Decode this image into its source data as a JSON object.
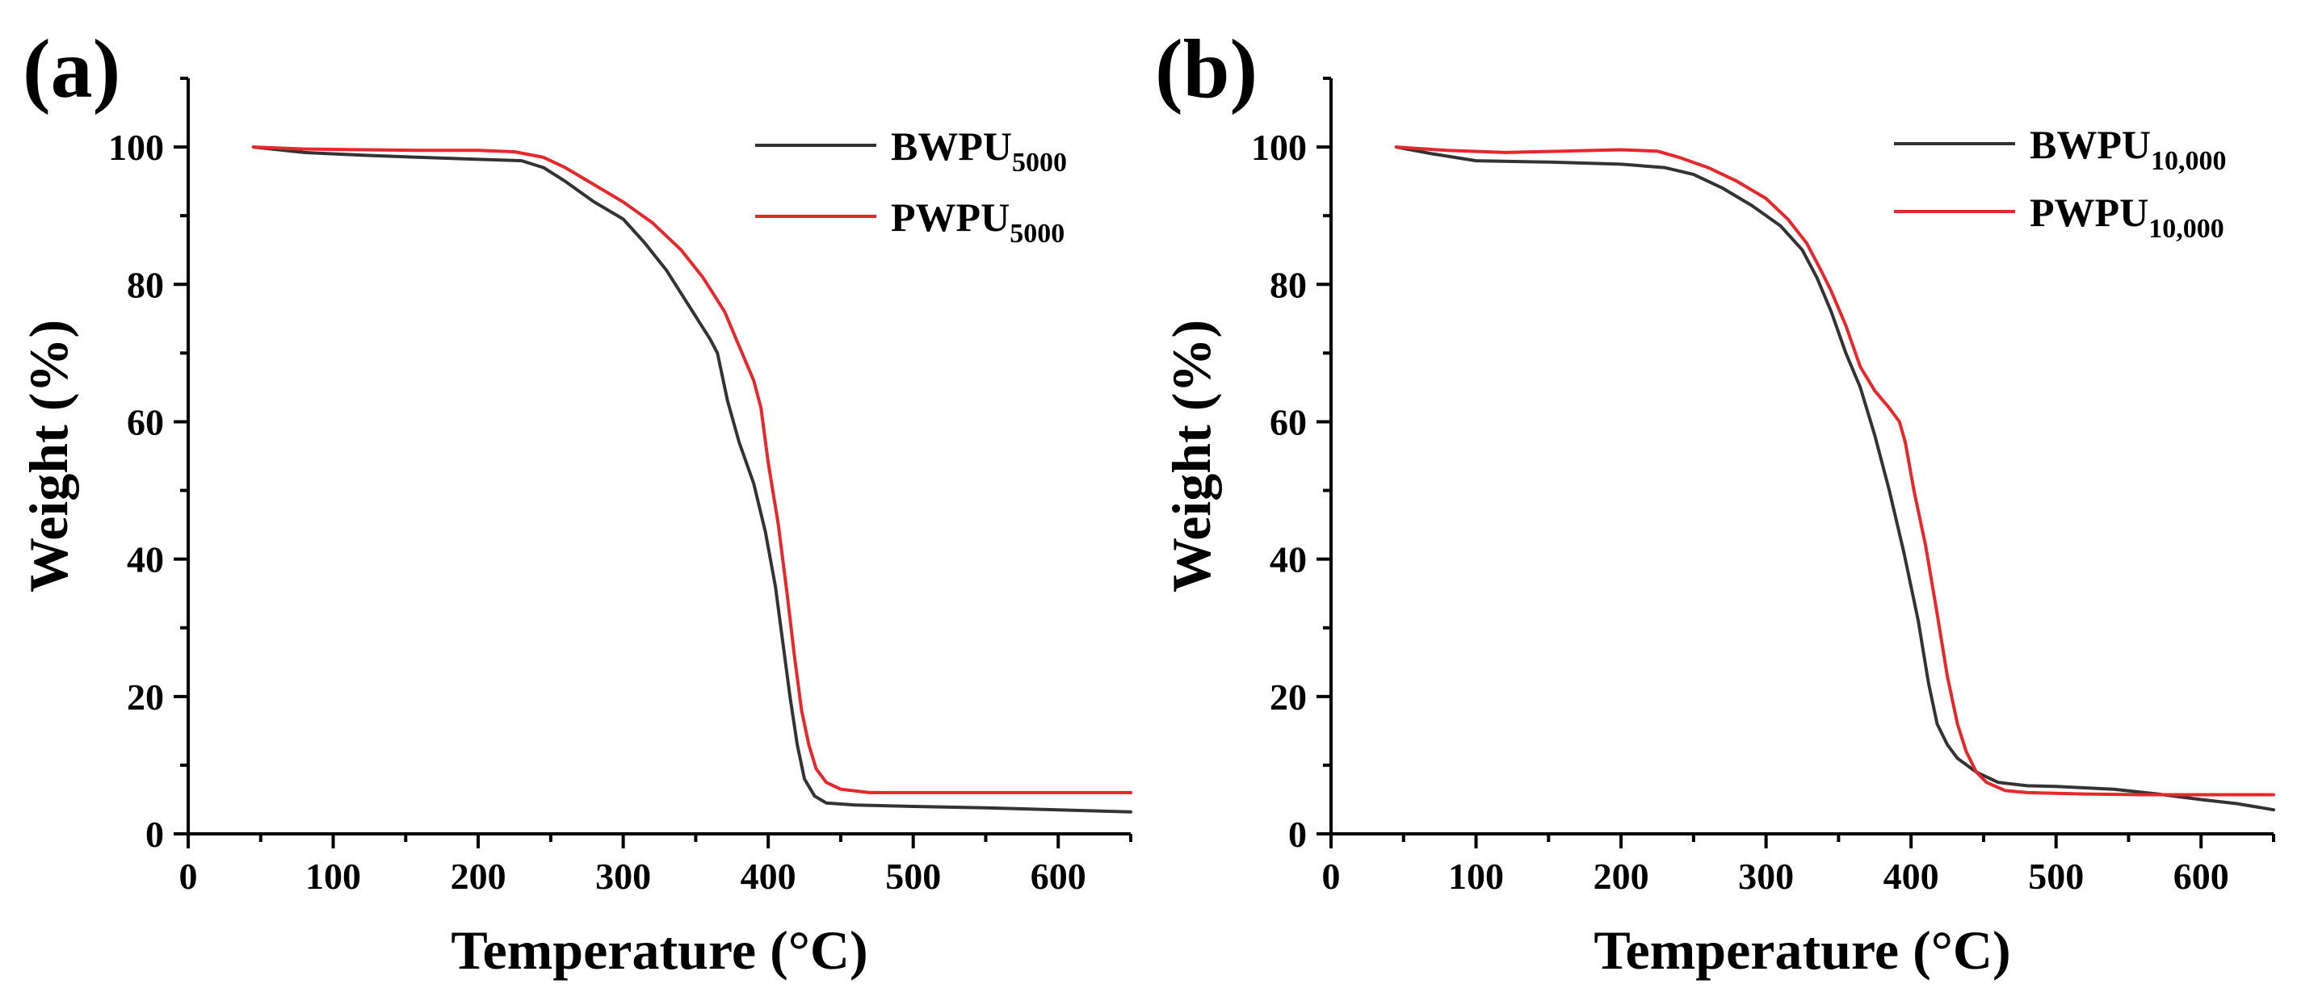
{
  "chart_data": [
    {
      "type": "line",
      "panel_label": "(a)",
      "xlabel": "Temperature (°C)",
      "ylabel": "Weight (%)",
      "xlim": [
        0,
        650
      ],
      "ylim": [
        0,
        110
      ],
      "xticks": [
        0,
        100,
        200,
        300,
        400,
        500,
        600
      ],
      "yticks": [
        0,
        20,
        40,
        60,
        80,
        100
      ],
      "grid": false,
      "legend_position": "top-right",
      "series": [
        {
          "name": "BWPU",
          "name_sub": "5000",
          "color": "#333333",
          "points": [
            [
              45,
              100
            ],
            [
              80,
              99.2
            ],
            [
              120,
              98.8
            ],
            [
              160,
              98.5
            ],
            [
              200,
              98.2
            ],
            [
              230,
              98
            ],
            [
              245,
              97
            ],
            [
              260,
              95
            ],
            [
              280,
              92
            ],
            [
              300,
              89.5
            ],
            [
              315,
              86
            ],
            [
              330,
              82
            ],
            [
              345,
              77
            ],
            [
              360,
              72
            ],
            [
              365,
              70
            ],
            [
              372,
              63
            ],
            [
              380,
              57
            ],
            [
              390,
              51
            ],
            [
              398,
              44
            ],
            [
              405,
              36
            ],
            [
              410,
              28
            ],
            [
              415,
              20
            ],
            [
              420,
              13
            ],
            [
              425,
              8
            ],
            [
              432,
              5.5
            ],
            [
              440,
              4.5
            ],
            [
              460,
              4.2
            ],
            [
              500,
              4
            ],
            [
              550,
              3.8
            ],
            [
              600,
              3.5
            ],
            [
              650,
              3.2
            ]
          ]
        },
        {
          "name": "PWPU",
          "name_sub": "5000",
          "color": "#e8272a",
          "points": [
            [
              45,
              100
            ],
            [
              80,
              99.7
            ],
            [
              120,
              99.6
            ],
            [
              160,
              99.5
            ],
            [
              200,
              99.5
            ],
            [
              225,
              99.3
            ],
            [
              245,
              98.5
            ],
            [
              260,
              97
            ],
            [
              280,
              94.5
            ],
            [
              300,
              92
            ],
            [
              320,
              89
            ],
            [
              340,
              85
            ],
            [
              355,
              81
            ],
            [
              370,
              76
            ],
            [
              380,
              71
            ],
            [
              390,
              66
            ],
            [
              395,
              62
            ],
            [
              400,
              54
            ],
            [
              407,
              45
            ],
            [
              413,
              35
            ],
            [
              418,
              26
            ],
            [
              423,
              18
            ],
            [
              428,
              13
            ],
            [
              433,
              9.5
            ],
            [
              440,
              7.5
            ],
            [
              450,
              6.5
            ],
            [
              470,
              6
            ],
            [
              500,
              6
            ],
            [
              550,
              6
            ],
            [
              600,
              6
            ],
            [
              650,
              6
            ]
          ]
        }
      ]
    },
    {
      "type": "line",
      "panel_label": "(b)",
      "xlabel": "Temperature (°C)",
      "ylabel": "Weight (%)",
      "xlim": [
        0,
        650
      ],
      "ylim": [
        0,
        110
      ],
      "xticks": [
        0,
        100,
        200,
        300,
        400,
        500,
        600
      ],
      "yticks": [
        0,
        20,
        40,
        60,
        80,
        100
      ],
      "grid": false,
      "legend_position": "top-right",
      "series": [
        {
          "name": "BWPU",
          "name_sub": "10,000",
          "color": "#333333",
          "points": [
            [
              45,
              100
            ],
            [
              70,
              99
            ],
            [
              100,
              98
            ],
            [
              150,
              97.8
            ],
            [
              200,
              97.5
            ],
            [
              230,
              97
            ],
            [
              250,
              96
            ],
            [
              270,
              94
            ],
            [
              290,
              91.5
            ],
            [
              310,
              88.5
            ],
            [
              325,
              85
            ],
            [
              335,
              81
            ],
            [
              345,
              76
            ],
            [
              355,
              70
            ],
            [
              365,
              65
            ],
            [
              375,
              58
            ],
            [
              385,
              50
            ],
            [
              395,
              41
            ],
            [
              405,
              31
            ],
            [
              412,
              22
            ],
            [
              418,
              16
            ],
            [
              425,
              13
            ],
            [
              432,
              11
            ],
            [
              445,
              9
            ],
            [
              460,
              7.5
            ],
            [
              480,
              7
            ],
            [
              500,
              6.9
            ],
            [
              540,
              6.5
            ],
            [
              570,
              5.8
            ],
            [
              600,
              5
            ],
            [
              625,
              4.4
            ],
            [
              650,
              3.5
            ]
          ]
        },
        {
          "name": "PWPU",
          "name_sub": "10,000",
          "color": "#e8272a",
          "points": [
            [
              45,
              100
            ],
            [
              80,
              99.5
            ],
            [
              120,
              99.2
            ],
            [
              160,
              99.4
            ],
            [
              200,
              99.6
            ],
            [
              225,
              99.4
            ],
            [
              240,
              98.5
            ],
            [
              260,
              97
            ],
            [
              280,
              95
            ],
            [
              300,
              92.5
            ],
            [
              315,
              89.5
            ],
            [
              328,
              86
            ],
            [
              338,
              82
            ],
            [
              345,
              79
            ],
            [
              355,
              74
            ],
            [
              365,
              68
            ],
            [
              375,
              64.5
            ],
            [
              385,
              62
            ],
            [
              392,
              60
            ],
            [
              396,
              57
            ],
            [
              402,
              50
            ],
            [
              410,
              42
            ],
            [
              418,
              32
            ],
            [
              425,
              23
            ],
            [
              432,
              16
            ],
            [
              438,
              12
            ],
            [
              445,
              9
            ],
            [
              452,
              7.5
            ],
            [
              465,
              6.3
            ],
            [
              480,
              6
            ],
            [
              520,
              5.8
            ],
            [
              560,
              5.7
            ],
            [
              600,
              5.7
            ],
            [
              650,
              5.7
            ]
          ]
        }
      ]
    }
  ]
}
